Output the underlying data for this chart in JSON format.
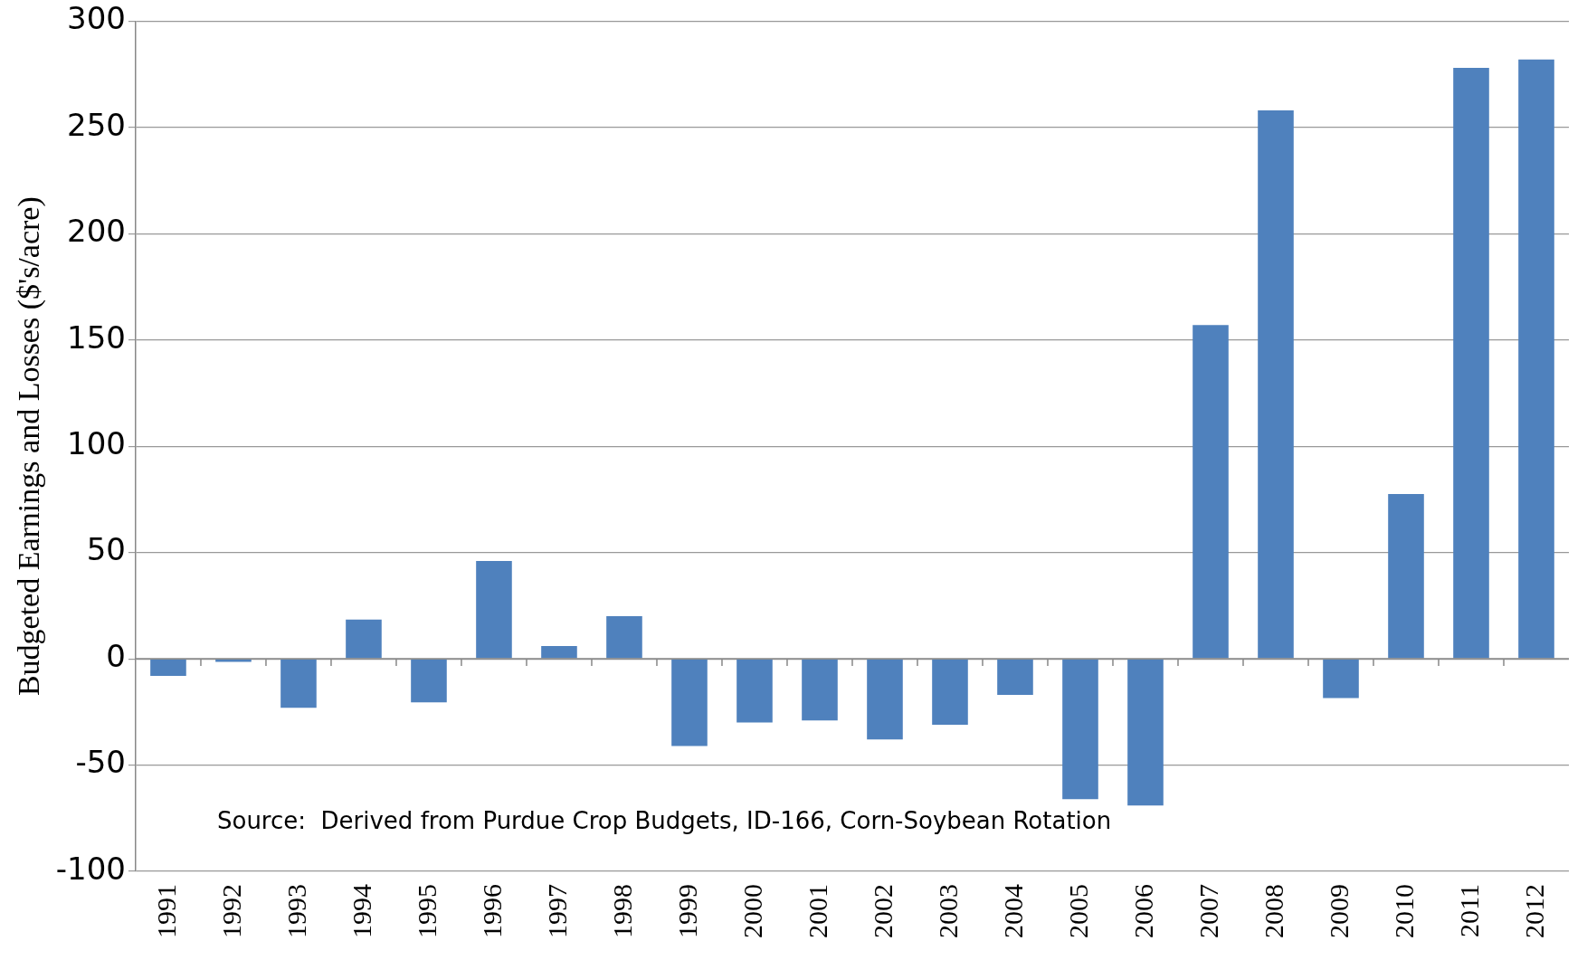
{
  "chart_data": {
    "type": "bar",
    "ylabel": "Budgeted Earnings and Losses ($'s/acre)",
    "categories": [
      "1991",
      "1992",
      "1993",
      "1994",
      "1995",
      "1996",
      "1997",
      "1998",
      "1999",
      "2000",
      "2001",
      "2002",
      "2003",
      "2004",
      "2005",
      "2006",
      "2007",
      "2008",
      "2009",
      "2010",
      "2011",
      "2012"
    ],
    "values": [
      -8,
      -1.5,
      -23,
      18.5,
      -20.5,
      46,
      6,
      20,
      -41,
      -30,
      -29,
      -38,
      -31,
      -17,
      -66,
      -69,
      157,
      258,
      -18.5,
      77.5,
      278,
      282
    ],
    "color": "#4f81bd",
    "ylim": [
      -100,
      300
    ],
    "yticks": [
      -100,
      -50,
      0,
      50,
      100,
      150,
      200,
      250,
      300
    ],
    "grid": "y",
    "annotations": [
      "Source:  Derived from Purdue Crop Budgets, ID-166, Corn-Soybean Rotation"
    ]
  }
}
